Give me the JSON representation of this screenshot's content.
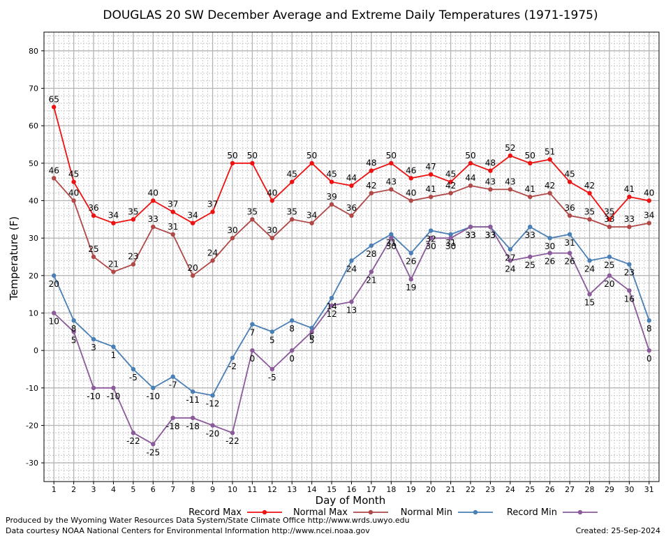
{
  "chart_data": {
    "type": "line",
    "title": "DOUGLAS 20 SW December Average and Extreme Daily Temperatures (1971-1975)",
    "xlabel": "Day of Month",
    "ylabel": "Temperature (F)",
    "ylim": [
      -35,
      85
    ],
    "xlim": [
      0.5,
      31.5
    ],
    "yticks": [
      -30,
      -20,
      -10,
      0,
      10,
      20,
      30,
      40,
      50,
      60,
      70,
      80
    ],
    "x": [
      1,
      2,
      3,
      4,
      5,
      6,
      7,
      8,
      9,
      10,
      11,
      12,
      13,
      14,
      15,
      16,
      17,
      18,
      19,
      20,
      21,
      22,
      23,
      24,
      25,
      26,
      27,
      28,
      29,
      30,
      31
    ],
    "grid": true,
    "legend_position": "bottom",
    "series": [
      {
        "name": "Record Max",
        "color": "#ee1111",
        "label_position": "above",
        "values": [
          65,
          45,
          36,
          34,
          35,
          40,
          37,
          34,
          37,
          50,
          50,
          40,
          45,
          50,
          45,
          44,
          48,
          50,
          46,
          47,
          45,
          50,
          48,
          52,
          50,
          51,
          45,
          42,
          35,
          41,
          40
        ]
      },
      {
        "name": "Normal Max",
        "color": "#b04848",
        "label_position": "above",
        "values": [
          46,
          40,
          25,
          21,
          23,
          33,
          31,
          20,
          24,
          30,
          35,
          30,
          35,
          34,
          39,
          36,
          42,
          43,
          40,
          41,
          42,
          44,
          43,
          43,
          41,
          42,
          36,
          35,
          33,
          33,
          34
        ]
      },
      {
        "name": "Normal Min",
        "color": "#4a7fb5",
        "label_position": "below",
        "values": [
          20,
          8,
          3,
          1,
          -5,
          -10,
          -7,
          -11,
          -12,
          -2,
          7,
          5,
          8,
          6,
          14,
          24,
          28,
          31,
          26,
          32,
          31,
          33,
          33,
          27,
          33,
          30,
          31,
          24,
          25,
          23,
          8
        ]
      },
      {
        "name": "Record Min",
        "color": "#8a5a9a",
        "label_position": "below",
        "values": [
          10,
          5,
          -10,
          -10,
          -22,
          -25,
          -18,
          -18,
          -20,
          -22,
          0,
          -5,
          0,
          5,
          12,
          13,
          21,
          30,
          19,
          30,
          30,
          33,
          33,
          24,
          25,
          26,
          26,
          15,
          20,
          16,
          0
        ]
      }
    ]
  },
  "footer": {
    "produced_by": "Produced by the Wyoming Water Resources Data System/State Climate Office http://www.wrds.uwyo.edu",
    "courtesy": "Data courtesy NOAA National Centers for Environmental Information http://www.ncei.noaa.gov",
    "created": "Created:  25-Sep-2024"
  }
}
